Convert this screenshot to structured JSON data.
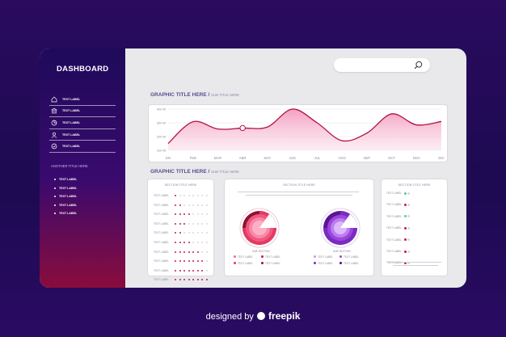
{
  "dashboard": {
    "title": "DASHBOARD"
  },
  "sidebar": {
    "items": [
      {
        "label": "TEXT LABEL",
        "icon": "home-icon"
      },
      {
        "label": "TEXT LABEL",
        "icon": "bank-icon"
      },
      {
        "label": "TEXT LABEL",
        "icon": "pie-icon"
      },
      {
        "label": "TEXT LABEL",
        "icon": "user-icon"
      },
      {
        "label": "TEXT LABEL",
        "icon": "check-icon"
      }
    ],
    "other_title": "ANOTHER TITLE HERE",
    "other_items": [
      "TEXT LABEL",
      "TEXT LABEL",
      "TEXT LABEL",
      "TEXT LABEL",
      "TEXT LABEL"
    ]
  },
  "search": {
    "placeholder": "",
    "icon": "search-icon"
  },
  "graph1": {
    "title": "GRAPHIC TITLE HERE /",
    "subtitle": "SUB TITLE HERE"
  },
  "graph2": {
    "title": "GRAPHIC TITLE HERE /",
    "subtitle": "SUB TITLE HERE"
  },
  "chart_data": {
    "type": "area",
    "x": [
      "EN",
      "FEB",
      "MAR",
      "ABR",
      "MAY",
      "JUN",
      "JUL",
      "AGO",
      "SEP",
      "OCT",
      "NOV",
      "DIC"
    ],
    "y_ticks": [
      "100 M",
      "200 M",
      "300 M",
      "400 M"
    ],
    "ylim": [
      100,
      400
    ],
    "values": [
      150,
      308,
      255,
      262,
      270,
      400,
      300,
      170,
      225,
      365,
      285,
      310
    ],
    "title": "GRAPHIC TITLE HERE /",
    "subtitle": "SUB TITLE HERE",
    "grid": true,
    "line_color": "#b3103f",
    "fill_color": "#f6a6c6"
  },
  "left_panel": {
    "title": "SECTION TITLE HERE",
    "rows": [
      {
        "label": "TEXT LABEL",
        "count": 1
      },
      {
        "label": "TEXT LABEL",
        "count": 2
      },
      {
        "label": "TEXT LABEL",
        "count": 4
      },
      {
        "label": "TEXT LABEL",
        "count": 3
      },
      {
        "label": "TEXT LABEL",
        "count": 2
      },
      {
        "label": "TEXT LABEL",
        "count": 4
      },
      {
        "label": "TEXT LABEL",
        "count": 6
      },
      {
        "label": "TEXT LABEL",
        "count": 7
      },
      {
        "label": "TEXT LABEL",
        "count": 7
      },
      {
        "label": "TEXT LABEL",
        "count": 8
      }
    ]
  },
  "center_panel": {
    "title": "SECTION TITLE HERE",
    "sub_section_left": "SUB SECTION",
    "sub_section_right": "SUB SECTION",
    "legend_left": [
      "TEXT LABEL",
      "TEXT LABEL",
      "TEXT LABEL",
      "TEXT LABEL"
    ],
    "legend_right": [
      "TEXT LABEL",
      "TEXT LABEL",
      "TEXT LABEL",
      "TEXT LABEL"
    ],
    "colors": {
      "pink": "#e8356a",
      "purple": "#8b2fd0"
    }
  },
  "right_panel": {
    "title": "SECTION TITLE HERE",
    "rows": [
      {
        "label": "TEXT LABEL",
        "status": "#59d27a"
      },
      {
        "label": "TEXT LABEL",
        "status": "#d0184c"
      },
      {
        "label": "TEXT LABEL",
        "status": "#59d27a"
      },
      {
        "label": "TEXT LABEL",
        "status": "#d0184c"
      },
      {
        "label": "TEXT LABEL",
        "status": "#d0184c"
      },
      {
        "label": "TEXT LABEL",
        "status": "#d0184c"
      },
      {
        "label": "TEXT LABEL",
        "status": "#d0184c"
      }
    ]
  },
  "footer": {
    "prefix": "designed by",
    "brand": "freepik"
  }
}
